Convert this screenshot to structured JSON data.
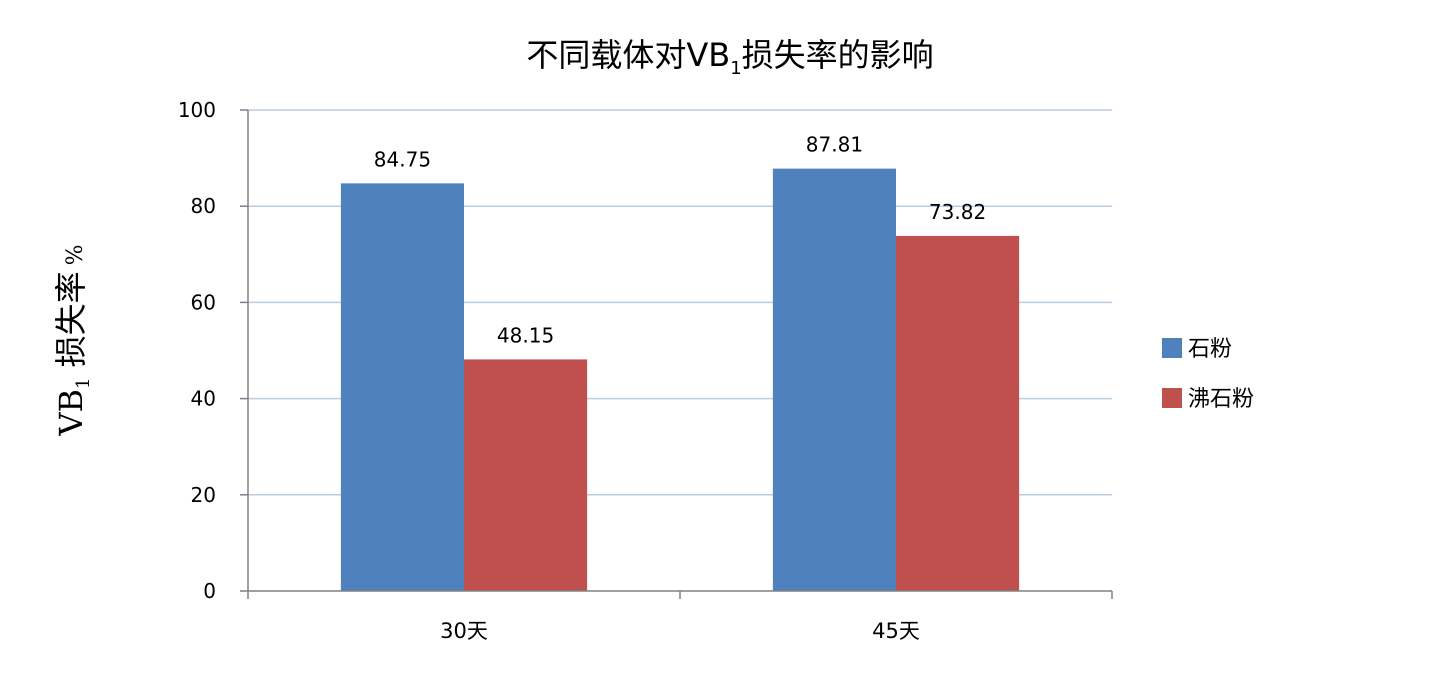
{
  "chart_data": {
    "type": "bar",
    "title": {
      "prefix": "不同载体对VB",
      "subscript": "1",
      "suffix": "损失率的影响"
    },
    "ylabel": {
      "prefix": "VB",
      "subscript": "1",
      "suffix": " 损失率",
      "unit": "%"
    },
    "xlabel": "",
    "categories": [
      "30天",
      "45天"
    ],
    "series": [
      {
        "name": "石粉",
        "color": "#4f81bd",
        "values": [
          84.75,
          87.81
        ],
        "labels": [
          "84.75",
          "87.81"
        ]
      },
      {
        "name": "沸石粉",
        "color": "#c0504d",
        "values": [
          48.15,
          73.82
        ],
        "labels": [
          "48.15",
          "73.82"
        ]
      }
    ],
    "ylim": [
      0,
      100
    ],
    "yticks": [
      0,
      20,
      40,
      60,
      80,
      100
    ],
    "grid": true,
    "gridline_color": "#b9cde5",
    "legend_position": "right"
  }
}
